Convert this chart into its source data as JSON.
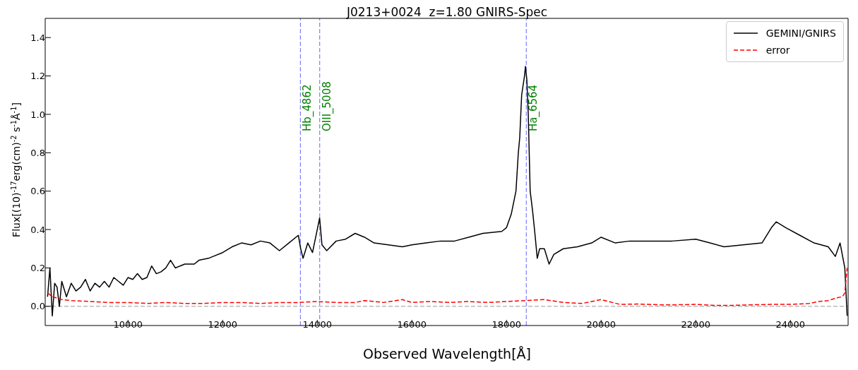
{
  "chart_data": {
    "type": "line",
    "title": "J0213+0024  z=1.80 GNIRS-Spec",
    "xlabel": "Observed Wavelength[Å]",
    "ylabel": "Flux[(10)$^{-17}$erg(cm)$^{-2}$ s$^{-1}$Å$^{-1}$]",
    "xlim": [
      8250,
      25220
    ],
    "ylim": [
      -0.1,
      1.5
    ],
    "xticks": [
      10000,
      12000,
      14000,
      16000,
      18000,
      20000,
      22000,
      24000
    ],
    "yticks": [
      {
        "value": 0,
        "label": "0.0"
      },
      {
        "value": 0.2,
        "label": "0.2"
      },
      {
        "value": 0.4,
        "label": "0.4"
      },
      {
        "value": 0.6,
        "label": "0.6"
      },
      {
        "value": 0.8,
        "label": "0.8"
      },
      {
        "value": 1.0,
        "label": "1.0"
      },
      {
        "value": 1.2,
        "label": "1.2"
      },
      {
        "value": 1.4,
        "label": "1.4"
      }
    ],
    "legend": "top right",
    "marker": "none",
    "series": [
      {
        "name": "GEMINI/GNIRS",
        "color": "#000000",
        "line_style": "solid",
        "x": [
          8300,
          8350,
          8400,
          8450,
          8500,
          8550,
          8600,
          8700,
          8800,
          8900,
          9000,
          9100,
          9200,
          9300,
          9400,
          9500,
          9600,
          9700,
          9800,
          9900,
          10000,
          10100,
          10200,
          10300,
          10400,
          10500,
          10600,
          10700,
          10800,
          10900,
          11000,
          11200,
          11400,
          11500,
          11700,
          11800,
          12000,
          12200,
          12400,
          12600,
          12800,
          13000,
          13200,
          13400,
          13600,
          13650,
          13700,
          13800,
          13900,
          14000,
          14050,
          14100,
          14200,
          14400,
          14600,
          14800,
          15000,
          15200,
          15500,
          15800,
          16000,
          16300,
          16600,
          16900,
          17200,
          17500,
          17900,
          18000,
          18100,
          18200,
          18250,
          18280,
          18320,
          18380,
          18400,
          18430,
          18460,
          18500,
          18550,
          18600,
          18650,
          18700,
          18800,
          18900,
          19000,
          19200,
          19500,
          19800,
          20000,
          20300,
          20600,
          21000,
          21500,
          22000,
          22300,
          22600,
          23000,
          23400,
          23600,
          23700,
          23900,
          24200,
          24500,
          24800,
          24950,
          25050,
          25150,
          25200
        ],
        "values": [
          0.05,
          0.2,
          -0.05,
          0.12,
          0.1,
          0.0,
          0.13,
          0.05,
          0.12,
          0.08,
          0.1,
          0.14,
          0.08,
          0.12,
          0.1,
          0.13,
          0.1,
          0.15,
          0.13,
          0.11,
          0.15,
          0.14,
          0.17,
          0.14,
          0.15,
          0.21,
          0.17,
          0.18,
          0.2,
          0.24,
          0.2,
          0.22,
          0.22,
          0.24,
          0.25,
          0.26,
          0.28,
          0.31,
          0.33,
          0.32,
          0.34,
          0.33,
          0.29,
          0.33,
          0.37,
          0.3,
          0.25,
          0.33,
          0.28,
          0.4,
          0.46,
          0.32,
          0.29,
          0.34,
          0.35,
          0.38,
          0.36,
          0.33,
          0.32,
          0.31,
          0.32,
          0.33,
          0.34,
          0.34,
          0.36,
          0.38,
          0.39,
          0.41,
          0.48,
          0.6,
          0.8,
          0.88,
          1.1,
          1.2,
          1.25,
          1.18,
          1.0,
          0.6,
          0.5,
          0.38,
          0.25,
          0.3,
          0.3,
          0.22,
          0.27,
          0.3,
          0.31,
          0.33,
          0.36,
          0.33,
          0.34,
          0.34,
          0.34,
          0.35,
          0.33,
          0.31,
          0.32,
          0.33,
          0.41,
          0.44,
          0.41,
          0.37,
          0.33,
          0.31,
          0.26,
          0.33,
          0.2,
          -0.05
        ]
      },
      {
        "name": "error",
        "color": "#ff0000",
        "line_style": "dashed",
        "x": [
          8300,
          8400,
          8600,
          8800,
          9200,
          9600,
          10000,
          10400,
          10800,
          11200,
          11600,
          12000,
          12400,
          12800,
          13200,
          13600,
          14000,
          14400,
          14800,
          15000,
          15400,
          15800,
          16000,
          16400,
          16800,
          17200,
          17600,
          18000,
          18400,
          18800,
          19200,
          19600,
          20000,
          20400,
          20800,
          21200,
          21600,
          22000,
          22400,
          22800,
          23200,
          23600,
          24000,
          24400,
          24600,
          24800,
          25000,
          25100,
          25150,
          25200
        ],
        "values": [
          0.07,
          0.05,
          0.035,
          0.03,
          0.025,
          0.02,
          0.02,
          0.015,
          0.02,
          0.015,
          0.015,
          0.02,
          0.02,
          0.015,
          0.02,
          0.02,
          0.025,
          0.02,
          0.02,
          0.03,
          0.02,
          0.035,
          0.02,
          0.025,
          0.02,
          0.025,
          0.02,
          0.025,
          0.03,
          0.035,
          0.02,
          0.015,
          0.035,
          0.01,
          0.012,
          0.008,
          0.008,
          0.01,
          0.005,
          0.005,
          0.008,
          0.01,
          0.01,
          0.015,
          0.025,
          0.03,
          0.045,
          0.05,
          0.07,
          0.2
        ]
      }
    ],
    "ref_lines": [
      {
        "axis": "x",
        "value": 13643,
        "label": "Hb_4862",
        "color": "#6666ff",
        "line_style": "dashed"
      },
      {
        "axis": "x",
        "value": 14052,
        "label": "OIII_5008",
        "color": "#6666ff",
        "line_style": "dashed"
      },
      {
        "axis": "x",
        "value": 18418,
        "label": "Ha_6564",
        "color": "#6666ff",
        "line_style": "dashed"
      },
      {
        "axis": "y",
        "value": 0,
        "color": "#bbbbbb",
        "line_style": "dashed"
      }
    ]
  }
}
